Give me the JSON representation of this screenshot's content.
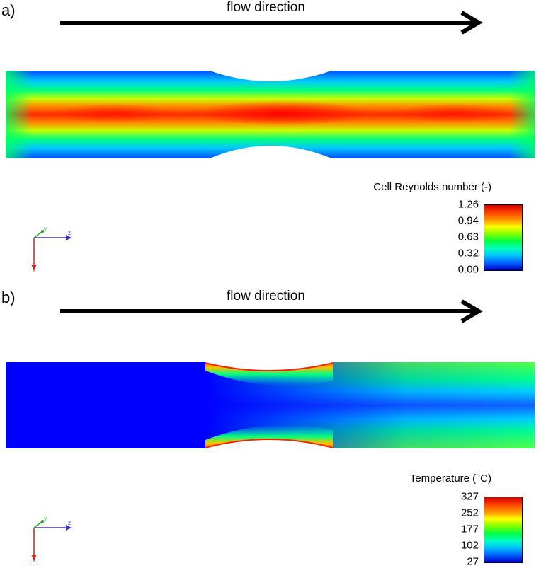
{
  "panels": [
    {
      "label": "a)",
      "flow_label": "flow direction",
      "colorbar_title": "Cell Reynolds number (-)",
      "colorbar_ticks": [
        "1.26",
        "0.94",
        "0.63",
        "0.32",
        "0.00"
      ]
    },
    {
      "label": "b)",
      "flow_label": "flow direction",
      "colorbar_title": "Temperature (°C)",
      "colorbar_ticks": [
        "327",
        "252",
        "177",
        "102",
        "27"
      ]
    }
  ],
  "axis_triad": {
    "y": "y",
    "z": "z",
    "x": "x"
  },
  "colors": {
    "jet_red": "#ff0000",
    "jet_orange": "#ff8000",
    "jet_yellow": "#ffff00",
    "jet_green": "#00ff40",
    "jet_cyan": "#00ffff",
    "jet_blue": "#0000ff",
    "triad_z": "#3333cc",
    "triad_y": "#22aa22",
    "triad_x": "#cc2222"
  }
}
